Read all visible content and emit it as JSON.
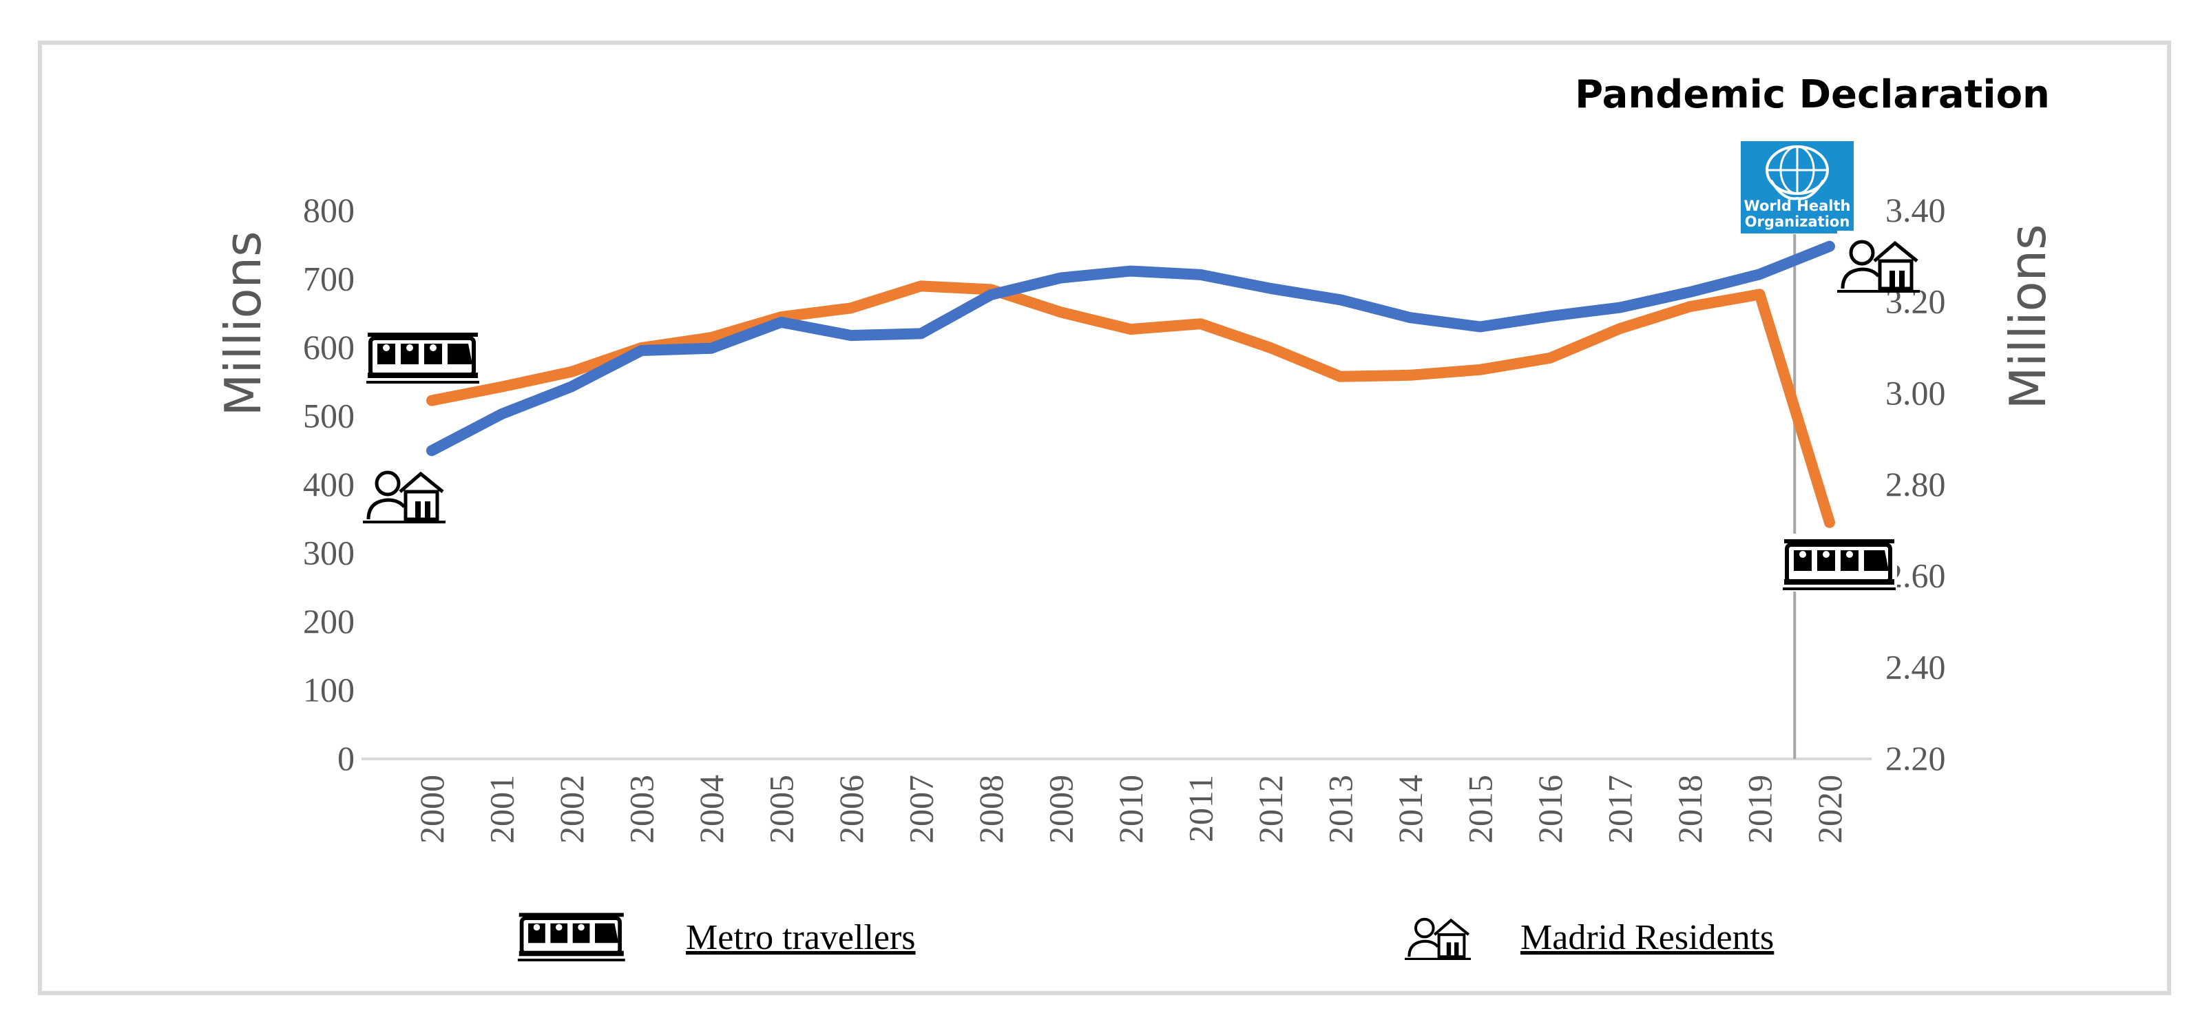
{
  "chart_data": {
    "type": "line",
    "annotation": {
      "title": "Pandemic Declaration",
      "logo_line1": "World Health",
      "logo_line2": "Organization",
      "event_year": 2019.5
    },
    "categories": [
      "2000",
      "2001",
      "2002",
      "2003",
      "2004",
      "2005",
      "2006",
      "2007",
      "2008",
      "2009",
      "2010",
      "2011",
      "2012",
      "2013",
      "2014",
      "2015",
      "2016",
      "2017",
      "2018",
      "2019",
      "2020"
    ],
    "left_axis": {
      "label": "Millions",
      "min": 0,
      "max": 800,
      "ticks": [
        "0",
        "100",
        "200",
        "300",
        "400",
        "500",
        "600",
        "700",
        "800"
      ]
    },
    "right_axis": {
      "label": "Millions",
      "min": 2.2,
      "max": 3.4,
      "ticks": [
        "2.20",
        "2.40",
        "2.60",
        "2.80",
        "3.00",
        "3.20",
        "3.40"
      ]
    },
    "series": [
      {
        "name": "Metro travellers",
        "axis": "left",
        "color": "#ED7D31",
        "values": [
          523,
          543,
          565,
          600,
          615,
          645,
          658,
          690,
          685,
          652,
          627,
          635,
          600,
          558,
          560,
          568,
          585,
          628,
          660,
          678,
          345
        ]
      },
      {
        "name": "Madrid Residents",
        "axis": "right",
        "color": "#4472C4",
        "values": [
          2.875,
          2.955,
          3.015,
          3.094,
          3.099,
          3.156,
          3.127,
          3.131,
          3.216,
          3.253,
          3.268,
          3.26,
          3.23,
          3.205,
          3.166,
          3.146,
          3.169,
          3.188,
          3.222,
          3.261,
          3.322
        ]
      }
    ],
    "legend": {
      "metro_label": "Metro travellers",
      "residents_label": "Madrid Residents"
    },
    "icons": [
      "metro-train-icon",
      "resident-house-icon"
    ],
    "frame_color": "#d9d9d9",
    "text_color": "#595959",
    "who_color": "#1a8fd0"
  }
}
